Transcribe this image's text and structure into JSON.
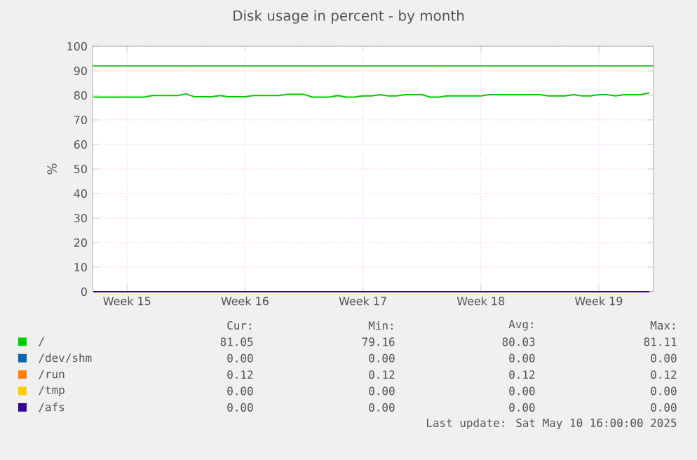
{
  "chart_data": {
    "type": "line",
    "title": "Disk usage in percent - by month",
    "ylabel": "%",
    "categories": [
      null,
      null,
      null,
      null,
      "Week 15",
      null,
      null,
      null,
      null,
      null,
      null,
      null,
      null,
      null,
      null,
      null,
      null,
      null,
      "Week 16",
      null,
      null,
      null,
      null,
      null,
      null,
      null,
      null,
      null,
      null,
      null,
      null,
      null,
      "Week 17",
      null,
      null,
      null,
      null,
      null,
      null,
      null,
      null,
      null,
      null,
      null,
      null,
      null,
      "Week 18",
      null,
      null,
      null,
      null,
      null,
      null,
      null,
      null,
      null,
      null,
      null,
      null,
      null,
      "Week 19",
      null,
      null,
      null,
      null,
      null,
      null
    ],
    "ylim": [
      0,
      100
    ],
    "yticks": [
      0,
      10,
      20,
      30,
      40,
      50,
      60,
      70,
      80,
      90,
      100
    ],
    "grid": true,
    "legend": "bottom",
    "series": [
      {
        "name": "/",
        "color": "#00cc00",
        "values": [
          79.3,
          79.3,
          79.3,
          79.3,
          79.3,
          79.3,
          79.3,
          79.9,
          79.9,
          79.9,
          79.9,
          80.6,
          79.4,
          79.4,
          79.4,
          79.9,
          79.4,
          79.4,
          79.4,
          79.9,
          79.9,
          79.9,
          79.9,
          80.4,
          80.4,
          80.4,
          79.3,
          79.3,
          79.3,
          79.9,
          79.3,
          79.3,
          79.8,
          79.8,
          80.3,
          79.8,
          79.8,
          80.3,
          80.3,
          80.3,
          79.3,
          79.3,
          79.8,
          79.8,
          79.8,
          79.8,
          79.8,
          80.3,
          80.3,
          80.3,
          80.3,
          80.3,
          80.3,
          80.3,
          79.8,
          79.8,
          79.8,
          80.3,
          79.8,
          79.8,
          80.3,
          80.3,
          79.8,
          80.3,
          80.3,
          80.3,
          81.0
        ]
      },
      {
        "name": "/dev/shm",
        "color": "#0066b3",
        "values": [
          null,
          null,
          null,
          null,
          null,
          null,
          null,
          null,
          null,
          null,
          null,
          null,
          null,
          null,
          null,
          null,
          null,
          null,
          null,
          null,
          null,
          null,
          null,
          null,
          null,
          null,
          null,
          null,
          null,
          null,
          null,
          null,
          null,
          null,
          null,
          null,
          null,
          null,
          null,
          null,
          null,
          null,
          null,
          null,
          null,
          null,
          null,
          null,
          null,
          null,
          null,
          null,
          null,
          null,
          null,
          null,
          null,
          null,
          null,
          null,
          null,
          null,
          null,
          null,
          null,
          null,
          null
        ]
      },
      {
        "name": "/run",
        "color": "#ff8000",
        "values": [
          null,
          null,
          null,
          null,
          null,
          null,
          null,
          null,
          null,
          null,
          null,
          null,
          null,
          null,
          null,
          null,
          null,
          null,
          null,
          null,
          null,
          null,
          null,
          null,
          null,
          null,
          null,
          null,
          null,
          null,
          null,
          null,
          null,
          null,
          null,
          null,
          null,
          null,
          null,
          null,
          null,
          null,
          null,
          null,
          null,
          null,
          null,
          null,
          null,
          null,
          null,
          null,
          null,
          null,
          null,
          null,
          null,
          null,
          null,
          null,
          null,
          null,
          null,
          null,
          null,
          null,
          null
        ]
      },
      {
        "name": "/tmp",
        "color": "#ffcc00",
        "values": [
          null,
          null,
          null,
          null,
          null,
          null,
          null,
          null,
          null,
          null,
          null,
          null,
          null,
          null,
          null,
          null,
          null,
          null,
          null,
          null,
          null,
          null,
          null,
          null,
          null,
          null,
          null,
          null,
          null,
          null,
          null,
          null,
          null,
          null,
          null,
          null,
          null,
          null,
          null,
          null,
          null,
          null,
          null,
          null,
          null,
          null,
          null,
          null,
          null,
          null,
          null,
          null,
          null,
          null,
          null,
          null,
          null,
          null,
          null,
          null,
          null,
          null,
          null,
          null,
          null,
          null,
          null
        ]
      },
      {
        "name": "/afs",
        "color": "#330099",
        "values": [
          0,
          0,
          0,
          0,
          0,
          0,
          0,
          0,
          0,
          0,
          0,
          0,
          0,
          0,
          0,
          0,
          0,
          0,
          0,
          0,
          0,
          0,
          0,
          0,
          0,
          0,
          0,
          0,
          0,
          0,
          0,
          0,
          0,
          0,
          0,
          0,
          0,
          0,
          0,
          0,
          0,
          0,
          0,
          0,
          0,
          0,
          0,
          0,
          0,
          0,
          0,
          0,
          0,
          0,
          0,
          0,
          0,
          0,
          0,
          0,
          0,
          0,
          0,
          0,
          0,
          0,
          0
        ]
      }
    ],
    "ref_lines": [
      {
        "axis": "y",
        "value": 92,
        "color": "#00aa00"
      }
    ],
    "annotations": [
      "Cur:",
      "Min:",
      "Avg:",
      "Max:",
      "81.05",
      "79.16",
      "80.03",
      "81.11",
      "0.00",
      "0.00",
      "0.00",
      "0.00",
      "0.12",
      "0.12",
      "0.12",
      "0.12",
      "0.00",
      "0.00",
      "0.00",
      "0.00",
      "0.00",
      "0.00",
      "0.00",
      "0.00",
      "Last update:  Sat May 10 16:00:00 2025"
    ]
  }
}
